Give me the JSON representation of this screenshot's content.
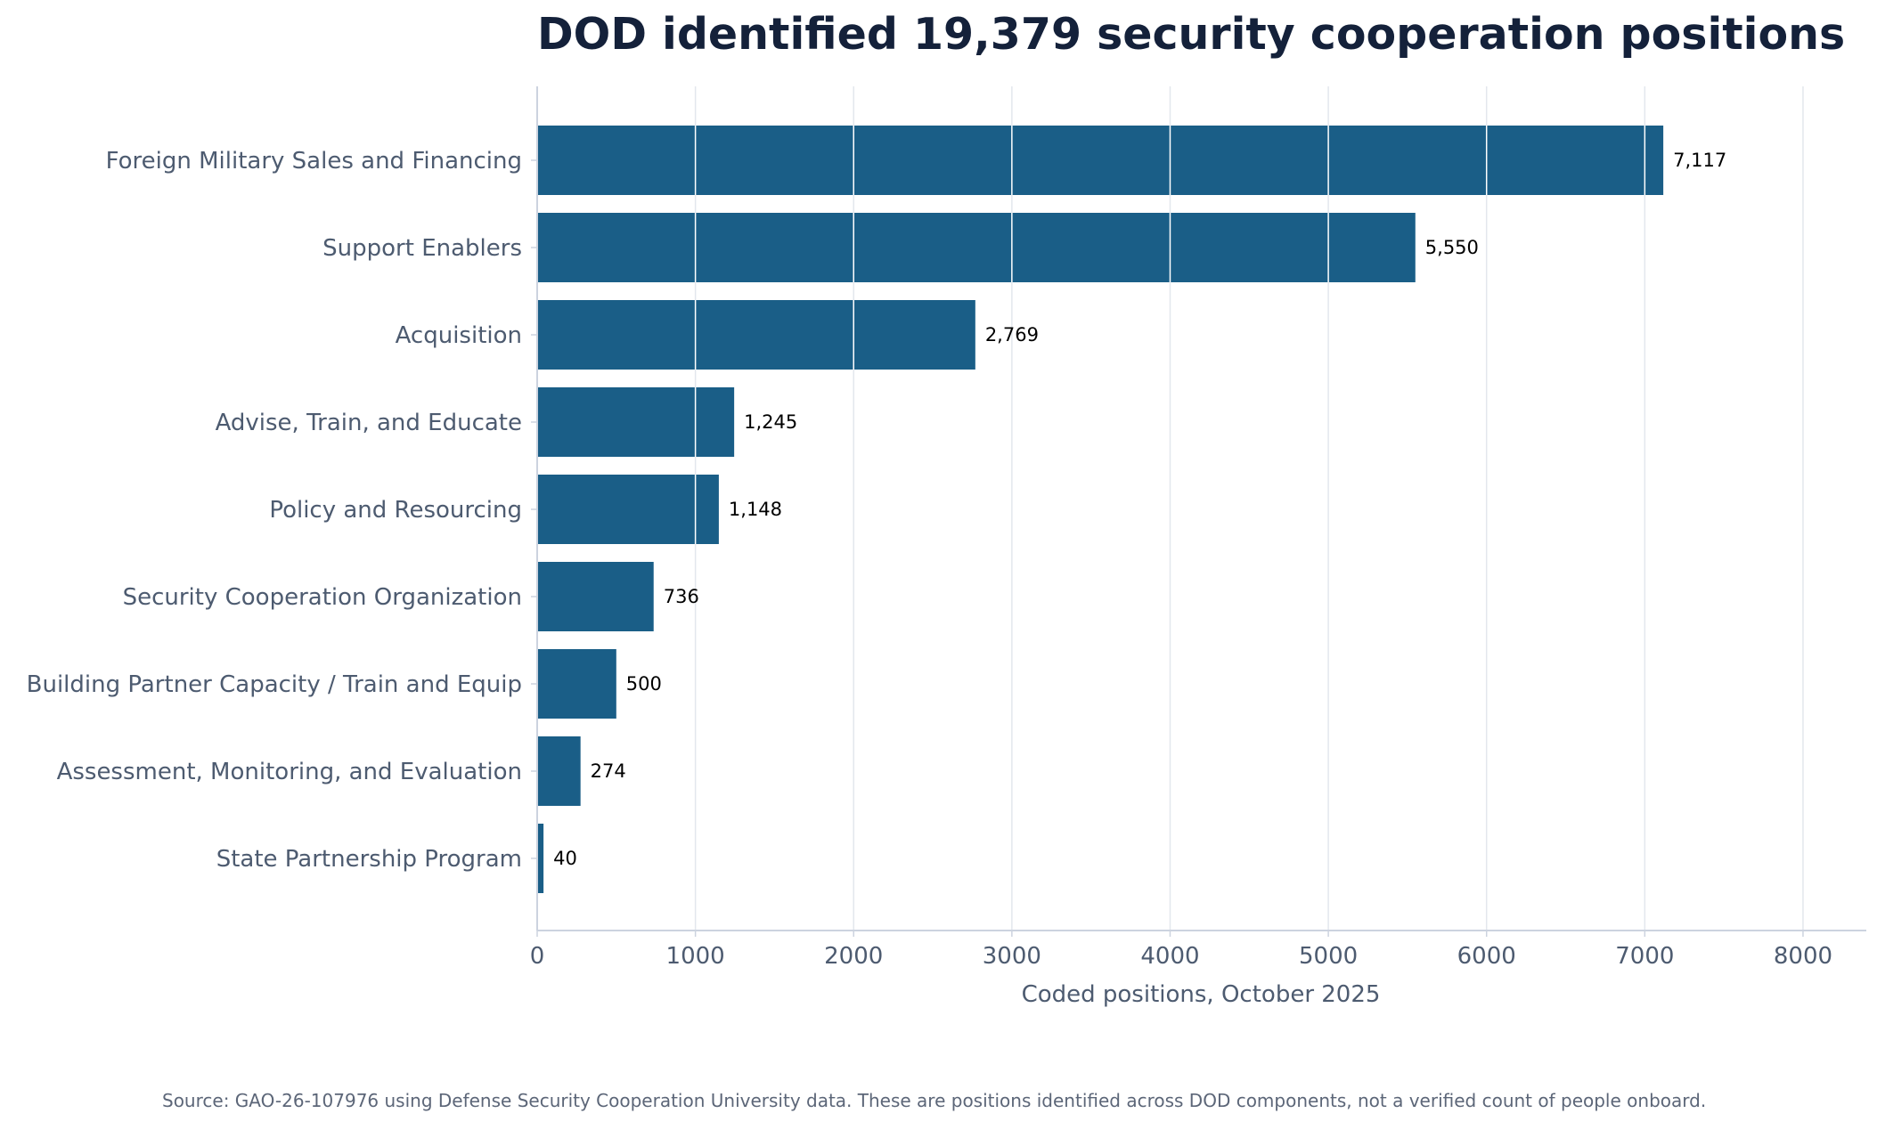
{
  "chart_data": {
    "type": "bar",
    "orientation": "horizontal",
    "title": "DOD identified 19,379 security cooperation positions",
    "xlabel": "Coded positions, October 2025",
    "ylabel": "",
    "xlim": [
      0,
      8400
    ],
    "xticks": [
      0,
      1000,
      2000,
      3000,
      4000,
      5000,
      6000,
      7000,
      8000
    ],
    "xtick_labels": [
      "0",
      "1000",
      "2000",
      "3000",
      "4000",
      "5000",
      "6000",
      "7000",
      "8000"
    ],
    "grid": "vertical",
    "categories": [
      "Foreign Military Sales and Financing",
      "Support Enablers",
      "Acquisition",
      "Advise, Train, and Educate",
      "Policy and Resourcing",
      "Security Cooperation Organization",
      "Building Partner Capacity / Train and Equip",
      "Assessment, Monitoring, and Evaluation",
      "State Partnership Program"
    ],
    "values": [
      7117,
      5550,
      2769,
      1245,
      1148,
      736,
      500,
      274,
      40
    ],
    "value_labels": [
      "7,117",
      "5,550",
      "2,769",
      "1,245",
      "1,148",
      "736",
      "500",
      "274",
      "40"
    ],
    "source": "Source: GAO-26-107976 using Defense Security Cooperation University data. These are positions identified across DOD components, not a verified count of people onboard."
  },
  "colors": {
    "bar": "#1a5e87",
    "grid": "#e3e7ed",
    "axis": "#ccd3df"
  }
}
